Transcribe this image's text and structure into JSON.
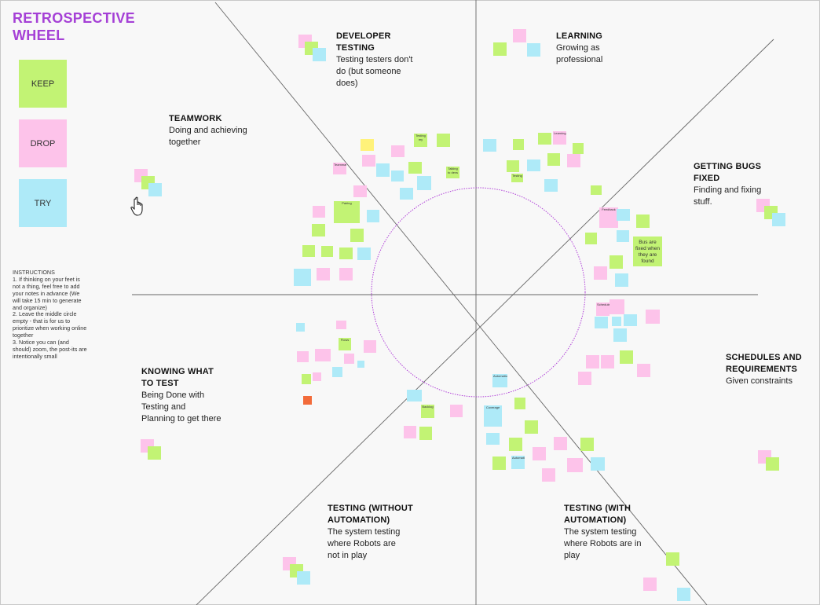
{
  "board": {
    "title_line1": "RETROSPECTIVE",
    "title_line2": "WHEEL"
  },
  "legend": [
    {
      "label": "KEEP",
      "color": "#c2f374"
    },
    {
      "label": "DROP",
      "color": "#fdc3ea"
    },
    {
      "label": "TRY",
      "color": "#aeeaf8"
    }
  ],
  "instructions": [
    "INSTRUCTIONS",
    "1. If thinking on your feet is not a thing, feel free to add your notes in advance (We will take 15 min to generate and organize)",
    "2. Leave the middle circle empty - that is for us to prioritize when working online together",
    "3. Notice you can (and should) zoom, the post-its are intentionally small"
  ],
  "sections": {
    "developer_testing": {
      "heading1": "DEVELOPER",
      "heading2": "TESTING",
      "desc1": "Testing testers don't",
      "desc2": "do (but someone",
      "desc3": "does)"
    },
    "learning": {
      "heading1": "LEARNING",
      "desc1": "Growing as",
      "desc2": "professional"
    },
    "teamwork": {
      "heading1": "TEAMWORK",
      "desc1": "Doing and achieving",
      "desc2": "together"
    },
    "getting_bugs_fixed": {
      "heading1": "GETTING BUGS",
      "heading2": "FIXED",
      "desc1": "Finding and fixing",
      "desc2": "stuff."
    },
    "schedules": {
      "heading1": "SCHEDULES AND",
      "heading2": "REQUIREMENTS",
      "desc1": "Given constraints"
    },
    "knowing": {
      "heading1": "KNOWING WHAT",
      "heading2": "TO TEST",
      "desc1": "Being Done with",
      "desc2": "Testing  and",
      "desc3": "Planning to get there"
    },
    "testing_without": {
      "heading1": "TESTING (WITHOUT",
      "heading2": "AUTOMATION)",
      "desc1": "The system testing",
      "desc2": "where Robots are",
      "desc3": "not in play"
    },
    "testing_with": {
      "heading1": "TESTING (WITH",
      "heading2": "AUTOMATION)",
      "desc1": "The system testing",
      "desc2": "where Robots are in",
      "desc3": "play"
    }
  },
  "big_note": {
    "line1": "Bus are",
    "line2": "fixed when",
    "line3": "they  are",
    "line4": "found"
  },
  "tiny_notes": {
    "n1": "Testing my",
    "n2": "Teammates",
    "n3": "Talking to devs",
    "n4": "Pairing",
    "n5": "Testing",
    "n6": "Learning",
    "n7": "Feedback",
    "n8": "Schedules",
    "n9": "Flows",
    "n10": "Automation",
    "n11": "Backlog",
    "n12": "Reporting",
    "n13": "Coverage",
    "n14": "Exploring",
    "n15": "Fixing",
    "n16": "Documentation",
    "n17": "Priorities",
    "n18": "Estimates"
  },
  "colors": {
    "keep": "#c2f374",
    "drop": "#fdc3ea",
    "try": "#aeeaf8",
    "accent": "#a540d6",
    "circle": "#b040d8"
  }
}
